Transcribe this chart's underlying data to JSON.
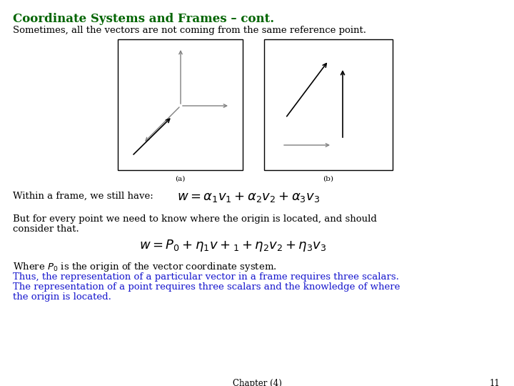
{
  "title": "Coordinate Systems and Frames – cont.",
  "subtitle": "Sometimes, all the vectors are not coming from the same reference point.",
  "title_color": "#006400",
  "subtitle_color": "#000000",
  "title_fontsize": 12,
  "subtitle_fontsize": 9.5,
  "bg_color": "#ffffff",
  "label_a": "(a)",
  "label_b": "(b)",
  "within_frame_text": "Within a frame, we still have:",
  "formula1": "$w = \\alpha_1 v_1 + \\alpha_2 v_2 + \\alpha_3 v_3$",
  "but_for_text": "But for every point we need to know where the origin is located, and should\nconsider that.",
  "formula2": "$w = P_0 + \\eta_1 v +_1 +\\eta_2 v_2 + \\eta_3 v_3$",
  "where_text": "Where $P_0$ is the origin of the vector coordinate system.",
  "blue_line1": "Thus, the representation of a particular vector in a frame requires three scalars.",
  "blue_line2": "The representation of a point requires three scalars and the knowledge of where",
  "blue_line3": "the origin is located.",
  "blue_color": "#1515cd",
  "footer_text": "Chapter (4)",
  "footer_number": "11",
  "footer_color": "#000000",
  "footer_fontsize": 8.5,
  "body_fontsize": 9.5,
  "formula_fontsize": 13
}
